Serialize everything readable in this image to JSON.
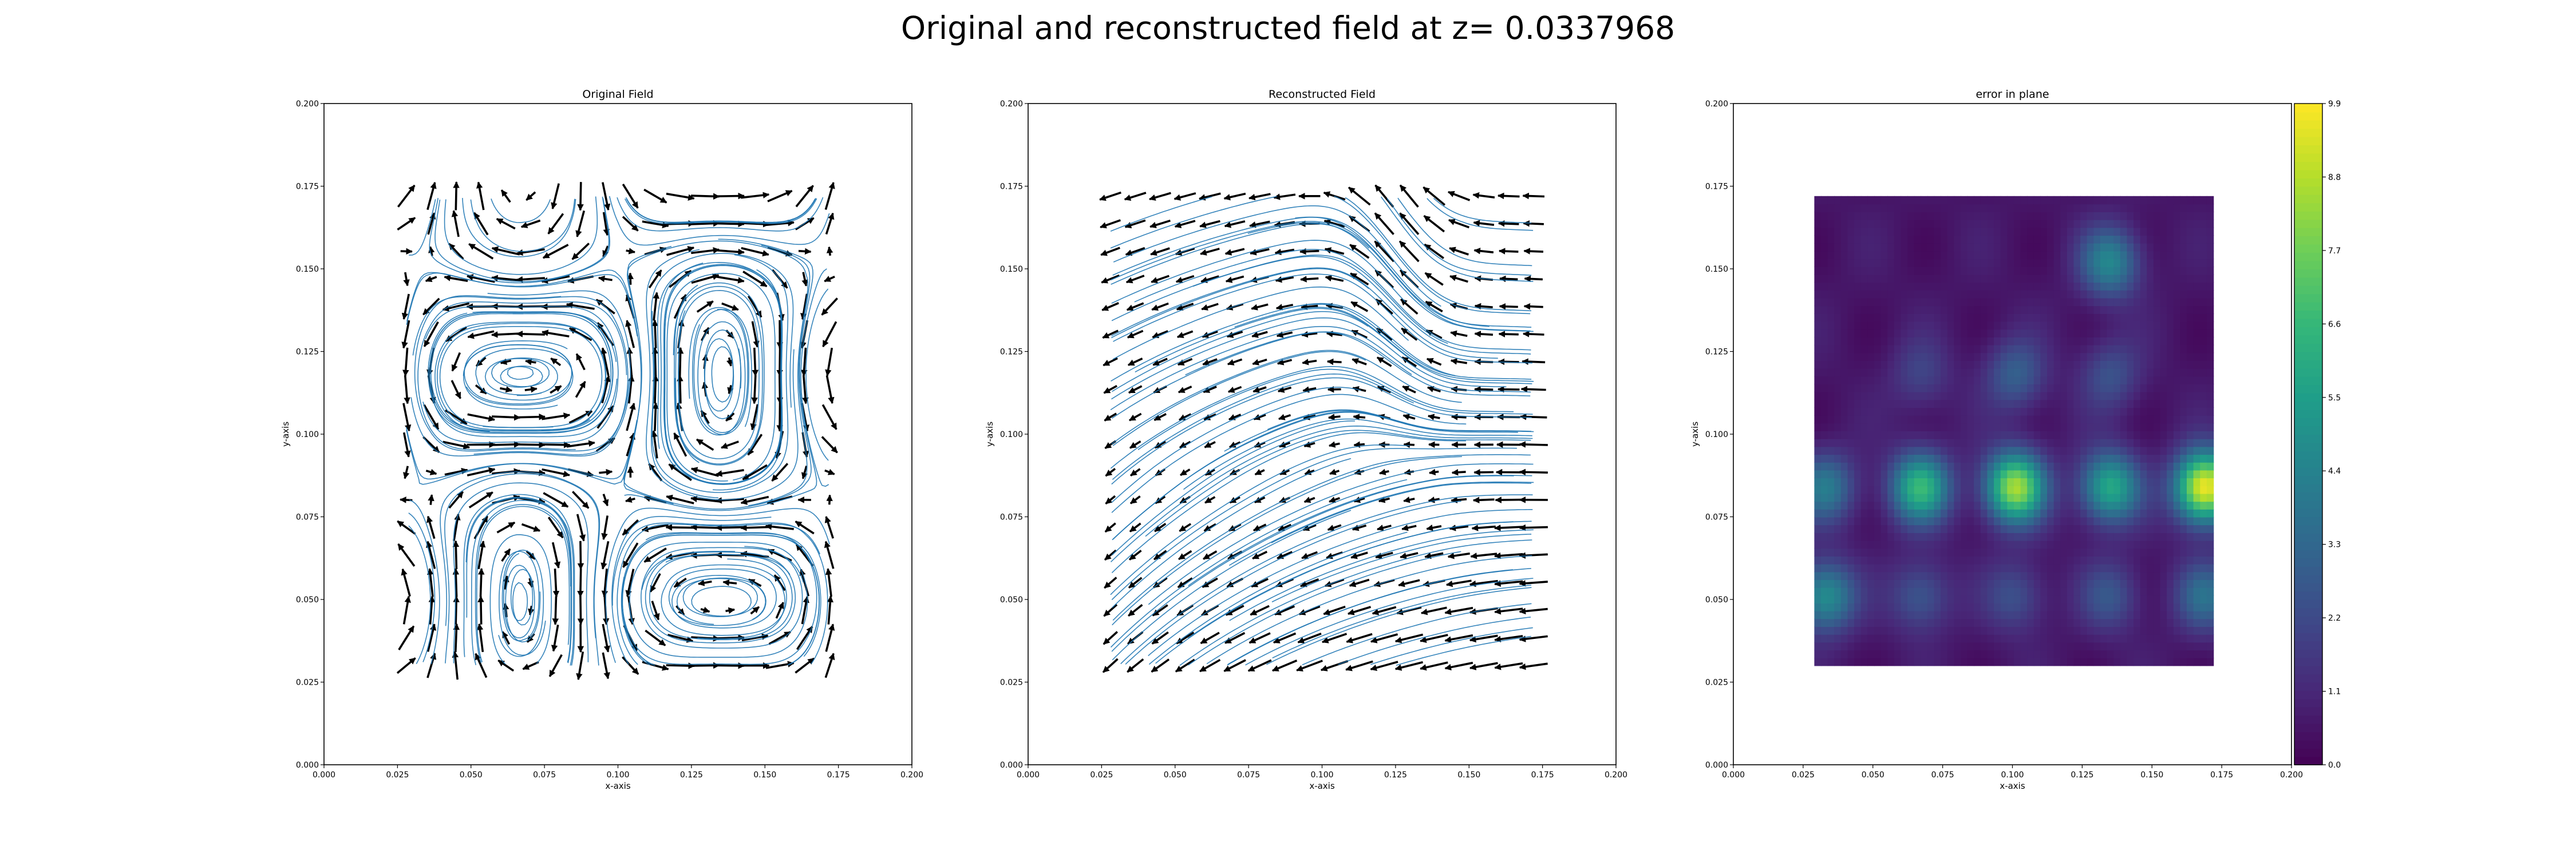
{
  "figure": {
    "title": "Original and reconstructed field at z= 0.0337968"
  },
  "chart_data": [
    {
      "type": "quiver",
      "title": "Original Field",
      "xlabel": "x-axis",
      "ylabel": "y-axis",
      "xlim": [
        0.0,
        0.2
      ],
      "ylim": [
        0.0,
        0.2
      ],
      "xticks": [
        "0.000",
        "0.025",
        "0.050",
        "0.075",
        "0.100",
        "0.125",
        "0.150",
        "0.175",
        "0.200"
      ],
      "yticks": [
        "0.000",
        "0.025",
        "0.050",
        "0.075",
        "0.100",
        "0.125",
        "0.150",
        "0.175",
        "0.200"
      ],
      "data_extent": {
        "x": [
          0.028,
          0.172
        ],
        "y": [
          0.03,
          0.172
        ]
      },
      "grid_points": 18,
      "field_description": "periodic cellular vortex pattern with streamlines",
      "vortex_centers": [
        [
          0.067,
          0.152
        ],
        [
          0.135,
          0.152
        ],
        [
          0.033,
          0.118
        ],
        [
          0.101,
          0.118
        ],
        [
          0.169,
          0.118
        ],
        [
          0.067,
          0.084
        ],
        [
          0.135,
          0.084
        ],
        [
          0.033,
          0.051
        ],
        [
          0.101,
          0.051
        ],
        [
          0.169,
          0.051
        ]
      ],
      "arrow_color": "#000000",
      "streamline_color": "#1f77b4",
      "grid": false
    },
    {
      "type": "quiver",
      "title": "Reconstructed Field",
      "xlabel": "x-axis",
      "ylabel": "y-axis",
      "xlim": [
        0.0,
        0.2
      ],
      "ylim": [
        0.0,
        0.2
      ],
      "xticks": [
        "0.000",
        "0.025",
        "0.050",
        "0.075",
        "0.100",
        "0.125",
        "0.150",
        "0.175",
        "0.200"
      ],
      "yticks": [
        "0.000",
        "0.025",
        "0.050",
        "0.075",
        "0.100",
        "0.125",
        "0.150",
        "0.175",
        "0.200"
      ],
      "data_extent": {
        "x": [
          0.028,
          0.172
        ],
        "y": [
          0.03,
          0.172
        ]
      },
      "grid_points": 18,
      "field_description": "smoothed reconstruction: strong upward flow near x=0.125 at top, leftward flow along bottom",
      "arrow_color": "#000000",
      "streamline_color": "#1f77b4",
      "grid": false
    },
    {
      "type": "heatmap",
      "title": "error in plane",
      "xlabel": "x-axis",
      "ylabel": "y-axis",
      "xlim": [
        0.0,
        0.2
      ],
      "ylim": [
        0.0,
        0.2
      ],
      "xticks": [
        "0.000",
        "0.025",
        "0.050",
        "0.075",
        "0.100",
        "0.125",
        "0.150",
        "0.175",
        "0.200"
      ],
      "yticks": [
        "0.000",
        "0.025",
        "0.050",
        "0.075",
        "0.100",
        "0.125",
        "0.150",
        "0.175",
        "0.200"
      ],
      "data_extent": {
        "x": [
          0.029,
          0.172
        ],
        "y": [
          0.03,
          0.172
        ]
      },
      "colormap": "viridis",
      "background_level": 0.6,
      "hotspots": [
        {
          "x": 0.135,
          "y": 0.152,
          "value": 4.5
        },
        {
          "x": 0.067,
          "y": 0.118,
          "value": 2.0
        },
        {
          "x": 0.101,
          "y": 0.118,
          "value": 3.0
        },
        {
          "x": 0.135,
          "y": 0.118,
          "value": 2.5
        },
        {
          "x": 0.033,
          "y": 0.084,
          "value": 4.0
        },
        {
          "x": 0.067,
          "y": 0.084,
          "value": 6.5
        },
        {
          "x": 0.101,
          "y": 0.084,
          "value": 8.5
        },
        {
          "x": 0.135,
          "y": 0.084,
          "value": 6.0
        },
        {
          "x": 0.169,
          "y": 0.084,
          "value": 9.9
        },
        {
          "x": 0.033,
          "y": 0.051,
          "value": 5.0
        },
        {
          "x": 0.067,
          "y": 0.051,
          "value": 2.8
        },
        {
          "x": 0.101,
          "y": 0.051,
          "value": 2.5
        },
        {
          "x": 0.135,
          "y": 0.051,
          "value": 2.6
        },
        {
          "x": 0.169,
          "y": 0.051,
          "value": 3.5
        }
      ],
      "colorbar": {
        "vmin": 0.0,
        "vmax": 9.9,
        "ticks": [
          "0.0",
          "1.1",
          "2.2",
          "3.3",
          "4.4",
          "5.5",
          "6.6",
          "7.7",
          "8.8",
          "9.9"
        ]
      },
      "grid": false
    }
  ]
}
